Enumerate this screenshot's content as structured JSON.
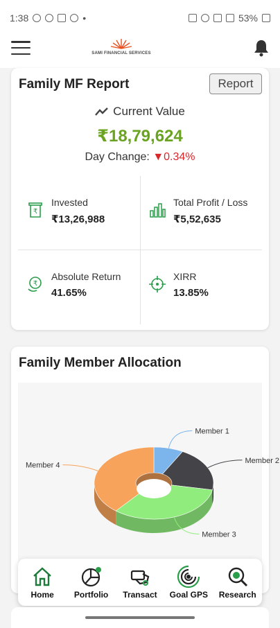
{
  "status_bar": {
    "time": "1:38",
    "dot": "•",
    "battery": "53%"
  },
  "header": {
    "brand": "SAMI FINANCIAL SERVICES"
  },
  "report_card": {
    "title": "Family MF Report",
    "report_button": "Report",
    "current_value_label": "Current Value",
    "current_value": "₹18,79,624",
    "day_change_label": "Day Change:",
    "day_change_value": "0.34%",
    "stats": [
      {
        "label": "Invested",
        "value": "₹13,26,988",
        "icon": "invest-icon"
      },
      {
        "label": "Total Profit / Loss",
        "value": "₹5,52,635",
        "icon": "bar-chart-icon"
      },
      {
        "label": "Absolute Return",
        "value": "41.65%",
        "icon": "rupee-coin-icon"
      },
      {
        "label": "XIRR",
        "value": "13.85%",
        "icon": "crosshair-icon"
      }
    ]
  },
  "allocation_card": {
    "title": "Family Member Allocation",
    "chart_data": {
      "type": "pie",
      "style": "3d-donut",
      "categories": [
        "Member 1",
        "Member 2",
        "Member 3",
        "Member 4"
      ],
      "values": [
        8,
        20,
        33,
        39
      ],
      "colors": [
        "#7cb5ec",
        "#434348",
        "#90ed7d",
        "#f7a35c"
      ],
      "legend": "callout-labels"
    }
  },
  "bottom_nav": [
    {
      "label": "Home",
      "icon": "home-icon",
      "active": true
    },
    {
      "label": "Portfolio",
      "icon": "portfolio-icon"
    },
    {
      "label": "Transact",
      "icon": "transact-icon"
    },
    {
      "label": "Goal GPS",
      "icon": "goal-gps-icon"
    },
    {
      "label": "Research",
      "icon": "research-icon"
    }
  ],
  "colors": {
    "positive": "#6aa321",
    "negative": "#d9262b",
    "accent": "#2a9d4a"
  }
}
